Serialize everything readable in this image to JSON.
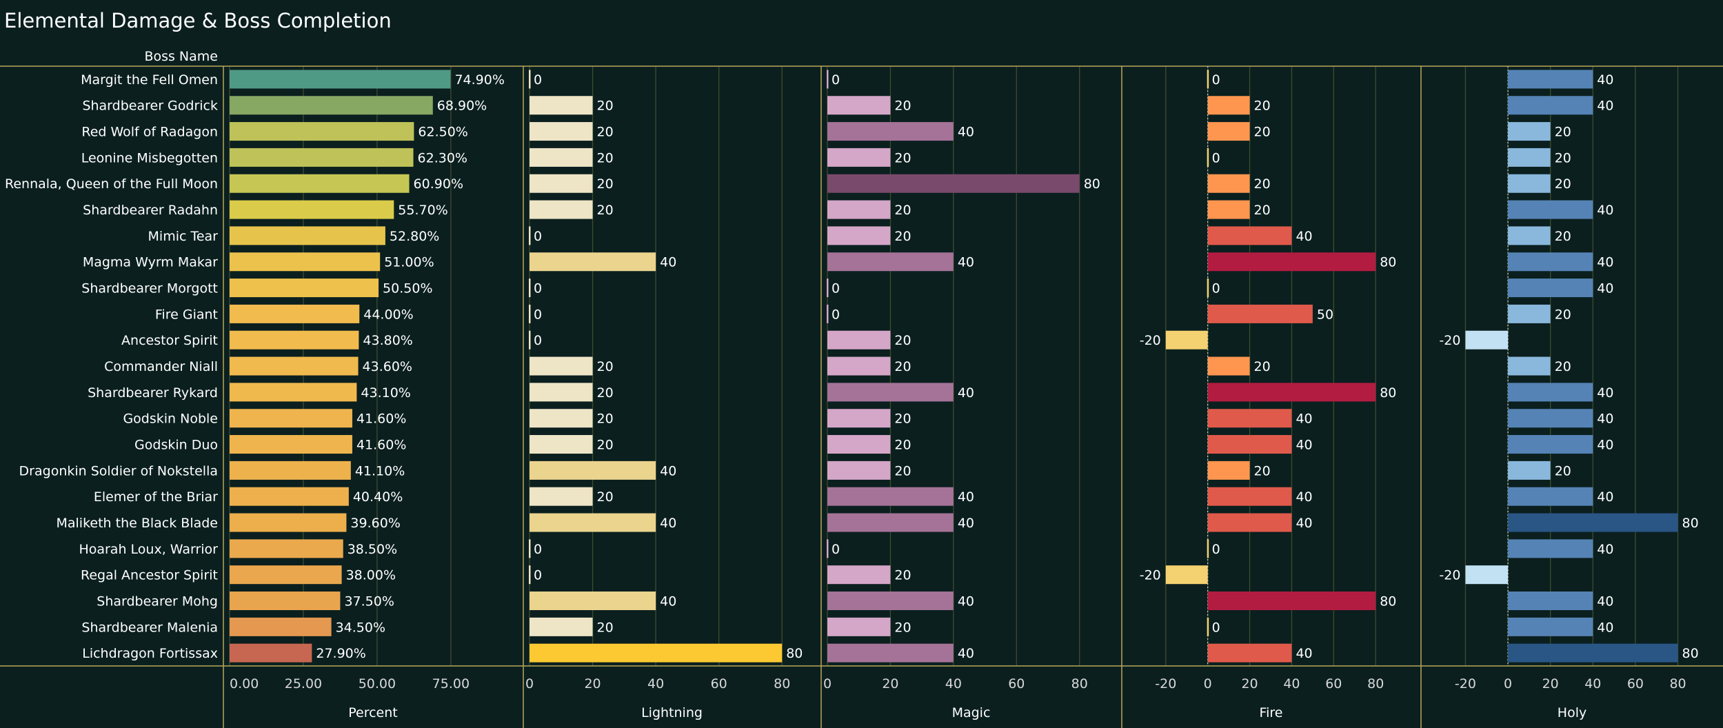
{
  "chart_data": {
    "type": "bar",
    "title": "Elemental Damage & Boss Completion",
    "row_header": "Boss Name",
    "categories": [
      "Margit the Fell Omen",
      "Shardbearer Godrick",
      "Red Wolf of Radagon",
      "Leonine Misbegotten",
      "Rennala, Queen of the Full Moon",
      "Shardbearer Radahn",
      "Mimic Tear",
      "Magma Wyrm Makar",
      "Shardbearer Morgott",
      "Fire Giant",
      "Ancestor Spirit",
      "Commander Niall",
      "Shardbearer Rykard",
      "Godskin Noble",
      "Godskin Duo",
      "Dragonkin Soldier of Nokstella",
      "Elemer of the Briar",
      "Maliketh the Black Blade",
      "Hoarah Loux, Warrior",
      "Regal Ancestor Spirit",
      "Shardbearer Mohg",
      "Shardbearer Malenia",
      "Lichdragon Fortissax"
    ],
    "series": [
      {
        "name": "Percent",
        "values": [
          74.9,
          68.9,
          62.5,
          62.3,
          60.9,
          55.7,
          52.8,
          51.0,
          50.5,
          44.0,
          43.8,
          43.6,
          43.1,
          41.6,
          41.6,
          41.1,
          40.4,
          39.6,
          38.5,
          38.0,
          37.5,
          34.5,
          27.9
        ],
        "labels": [
          "74.90%",
          "68.90%",
          "62.50%",
          "62.30%",
          "60.90%",
          "55.70%",
          "52.80%",
          "51.00%",
          "50.50%",
          "44.00%",
          "43.80%",
          "43.60%",
          "43.10%",
          "41.60%",
          "41.60%",
          "41.10%",
          "40.40%",
          "39.60%",
          "38.50%",
          "38.00%",
          "37.50%",
          "34.50%",
          "27.90%"
        ],
        "xlim": [
          0,
          97
        ],
        "ticks": [
          "0.00",
          "25.00",
          "50.00",
          "75.00"
        ],
        "tick_values": [
          0,
          25,
          50,
          75
        ]
      },
      {
        "name": "Lightning",
        "values": [
          0,
          20,
          20,
          20,
          20,
          20,
          0,
          40,
          0,
          0,
          0,
          20,
          20,
          20,
          20,
          40,
          20,
          40,
          0,
          0,
          40,
          20,
          80
        ],
        "labels": [
          "0",
          "20",
          "20",
          "20",
          "20",
          "20",
          "0",
          "40",
          "0",
          "0",
          "0",
          "20",
          "20",
          "20",
          "20",
          "40",
          "20",
          "40",
          "0",
          "0",
          "40",
          "20",
          "80"
        ],
        "xlim": [
          0,
          90
        ],
        "ticks": [
          "0",
          "20",
          "40",
          "60",
          "80"
        ],
        "tick_values": [
          0,
          20,
          40,
          60,
          80
        ]
      },
      {
        "name": "Magic",
        "values": [
          0,
          20,
          40,
          20,
          80,
          20,
          20,
          40,
          0,
          0,
          20,
          20,
          40,
          20,
          20,
          20,
          40,
          40,
          0,
          20,
          40,
          20,
          40
        ],
        "labels": [
          "0",
          "20",
          "40",
          "20",
          "80",
          "20",
          "20",
          "40",
          "0",
          "0",
          "20",
          "20",
          "40",
          "20",
          "20",
          "20",
          "40",
          "40",
          "0",
          "20",
          "40",
          "20",
          "40"
        ],
        "xlim": [
          0,
          91
        ],
        "ticks": [
          "0",
          "20",
          "40",
          "60",
          "80"
        ],
        "tick_values": [
          0,
          20,
          40,
          60,
          80
        ]
      },
      {
        "name": "Fire",
        "values": [
          0,
          20,
          20,
          0,
          20,
          20,
          40,
          80,
          0,
          50,
          -20,
          20,
          80,
          40,
          40,
          20,
          40,
          40,
          0,
          -20,
          80,
          0,
          40
        ],
        "labels": [
          "0",
          "20",
          "20",
          "0",
          "20",
          "20",
          "40",
          "80",
          "0",
          "50",
          "-20",
          "20",
          "80",
          "40",
          "40",
          "20",
          "40",
          "40",
          "0",
          "-20",
          "80",
          "0",
          "40"
        ],
        "xlim": [
          -38,
          98
        ],
        "ticks": [
          "-20",
          "0",
          "20",
          "40",
          "60",
          "80"
        ],
        "tick_values": [
          -20,
          0,
          20,
          40,
          60,
          80
        ]
      },
      {
        "name": "Holy",
        "values": [
          40,
          40,
          20,
          20,
          20,
          40,
          20,
          40,
          40,
          20,
          -20,
          20,
          40,
          40,
          40,
          20,
          40,
          80,
          40,
          -20,
          40,
          40,
          80
        ],
        "labels": [
          "40",
          "40",
          "20",
          "20",
          "20",
          "40",
          "20",
          "40",
          "40",
          "20",
          "-20",
          "20",
          "40",
          "40",
          "40",
          "20",
          "40",
          "80",
          "40",
          "-20",
          "40",
          "40",
          "80"
        ],
        "xlim": [
          -38,
          98
        ],
        "ticks": [
          "-20",
          "0",
          "20",
          "40",
          "60",
          "80"
        ],
        "tick_values": [
          -20,
          0,
          20,
          40,
          60,
          80
        ]
      }
    ],
    "grid": true,
    "colors": {
      "background": "#0b1f1f",
      "axis_line": "#b9a75a",
      "grid": "#3f4d2c",
      "text": "#ffffff",
      "tick_text": "#d9d9d9",
      "percent_ramp": [
        "#4f9a85",
        "#86a763",
        "#bcc05a",
        "#d4cf4a",
        "#ecc14c",
        "#f2c04f",
        "#edae4c",
        "#e39550",
        "#c76752"
      ],
      "lightning": {
        "0": "#eee5c6",
        "20": "#eee5c6",
        "40": "#ebd48e",
        "80": "#fcc932"
      },
      "magic": {
        "0": "#d4a6c8",
        "20": "#d4a6c8",
        "40": "#a57398",
        "80": "#794a6c"
      },
      "fire": {
        "-20": "#f4d271",
        "0": "#f4d271",
        "20": "#fe9650",
        "40": "#e05a4b",
        "50": "#e05a4b",
        "80": "#b31c41"
      },
      "holy": {
        "-20": "#c2e1f3",
        "0": "#c2e1f3",
        "20": "#89b8dc",
        "40": "#5583b5",
        "80": "#2a5686"
      }
    }
  }
}
